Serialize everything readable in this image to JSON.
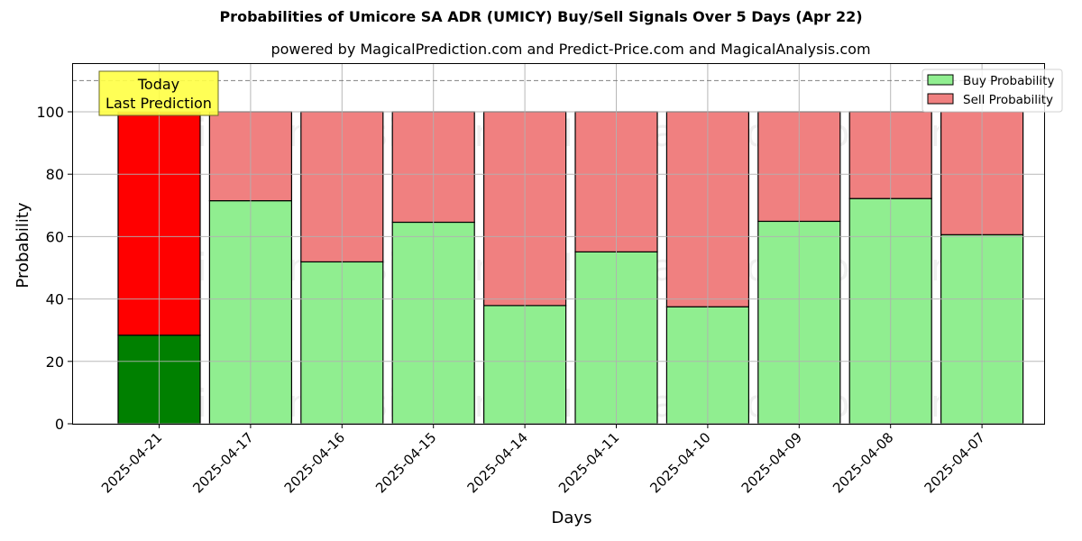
{
  "chart_data": {
    "type": "bar",
    "stacked": true,
    "title": "Probabilities of Umicore SA ADR (UMICY) Buy/Sell Signals Over 5 Days (Apr 22)",
    "subtitle": "powered by MagicalPrediction.com and Predict-Price.com and MagicalAnalysis.com",
    "xlabel": "Days",
    "ylabel": "Probability",
    "ylim": [
      0,
      115
    ],
    "yticks": [
      0,
      20,
      40,
      60,
      80,
      100
    ],
    "grid": true,
    "legend_position": "upper right",
    "categories": [
      "2025-04-21",
      "2025-04-17",
      "2025-04-16",
      "2025-04-15",
      "2025-04-14",
      "2025-04-11",
      "2025-04-10",
      "2025-04-09",
      "2025-04-08",
      "2025-04-07"
    ],
    "series": [
      {
        "name": "Buy Probability",
        "color": "#90ee90",
        "highlight_color": "#008000",
        "values": [
          28.4,
          71.5,
          51.9,
          64.6,
          37.9,
          55.1,
          37.5,
          64.9,
          72.2,
          60.6
        ]
      },
      {
        "name": "Sell Probability",
        "color": "#f08080",
        "highlight_color": "#ff0000",
        "values": [
          71.6,
          28.5,
          48.1,
          35.4,
          62.1,
          44.9,
          62.5,
          35.1,
          27.8,
          39.4
        ]
      }
    ],
    "reference_line": {
      "y": 110,
      "style": "dashed"
    },
    "annotation": {
      "text": "Today\nLast Prediction",
      "line1": "Today",
      "line2": "Last Prediction",
      "background": "#ffff44"
    },
    "watermarks": [
      "MagicalAnalysis.com",
      "MagicalPrediction.com"
    ]
  }
}
